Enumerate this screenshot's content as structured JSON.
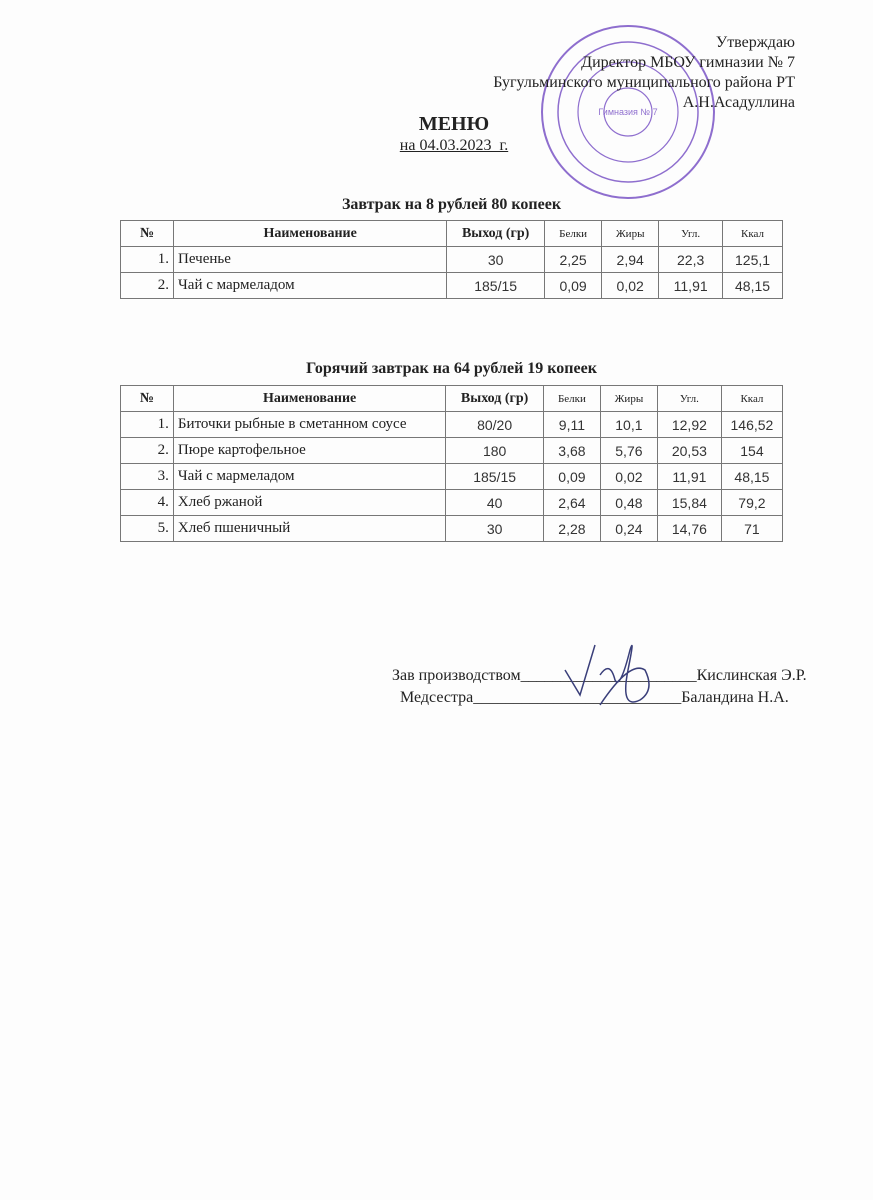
{
  "approval": {
    "lines": [
      "Утверждаю",
      "Директор МБОУ гимназии № 7",
      "Бугульминского муниципального района РТ",
      "А.Н.Асадуллина"
    ]
  },
  "title": "МЕНЮ",
  "date": "на 04.03.2023_г.",
  "stamp_text": "Гимназия № 7",
  "headers": [
    "№",
    "Наименование",
    "Выход (гр)",
    "Белки",
    "Жиры",
    "Угл.",
    "Ккал"
  ],
  "breakfast": {
    "caption": "Завтрак на 8 рублей 80 копеек",
    "rows": [
      [
        "1.",
        "Печенье",
        "30",
        "2,25",
        "2,94",
        "22,3",
        "125,1"
      ],
      [
        "2.",
        "Чай с мармеладом",
        "185/15",
        "0,09",
        "0,02",
        "11,91",
        "48,15"
      ]
    ]
  },
  "hot_breakfast": {
    "caption": "Горячий завтрак на 64 рублей 19 копеек",
    "rows": [
      [
        "1.",
        "Биточки рыбные в сметанном соусе",
        "80/20",
        "9,11",
        "10,1",
        "12,92",
        "146,52"
      ],
      [
        "2.",
        "Пюре картофельное",
        "180",
        "3,68",
        "5,76",
        "20,53",
        "154"
      ],
      [
        "3.",
        "Чай с мармеладом",
        "185/15",
        "0,09",
        "0,02",
        "11,91",
        "48,15"
      ],
      [
        "4.",
        "Хлеб ржаной",
        "40",
        "2,64",
        "0,48",
        "15,84",
        "79,2"
      ],
      [
        "5.",
        "Хлеб пшеничный",
        "30",
        "2,28",
        "0,24",
        "14,76",
        "71"
      ]
    ]
  },
  "signatures": [
    {
      "role": "Зав производством",
      "line": "______________________",
      "name": "Кислинская Э.Р."
    },
    {
      "role": "Медсестра",
      "line": "__________________________",
      "name": "Баландина Н.А."
    }
  ]
}
